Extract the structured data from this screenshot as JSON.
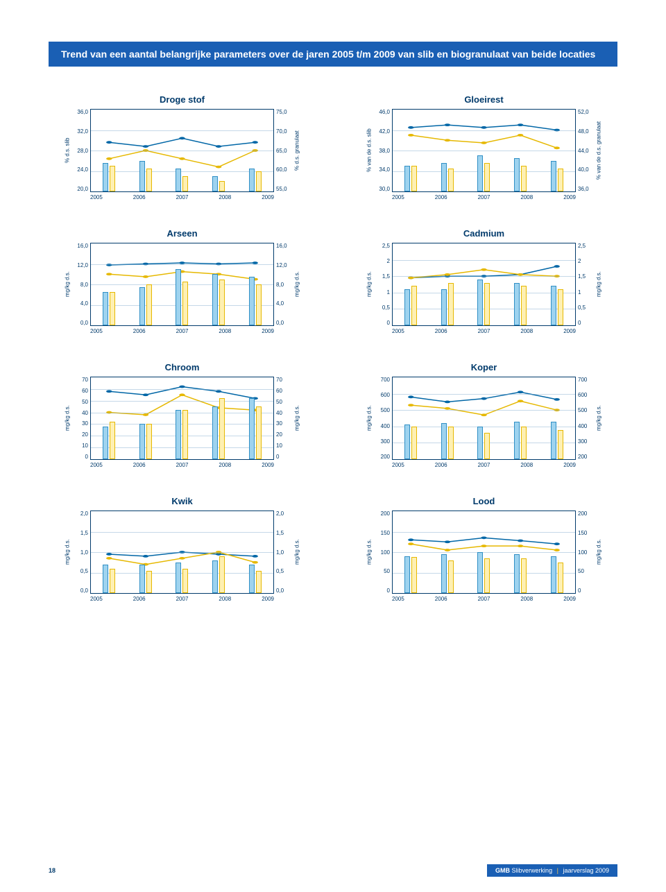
{
  "page_title": "Trend van een aantal belangrijke parameters over de jaren 2005 t/m 2009 van slib en biogranulaat van beide locaties",
  "years": [
    "2005",
    "2006",
    "2007",
    "2008",
    "2009"
  ],
  "page_number": "18",
  "footer_brand": "GMB",
  "footer_text1": "Slibverwerking",
  "footer_text2": "jaarverslag 2009",
  "colors": {
    "bar_blue_fill": "#9ed3ef",
    "bar_blue_stroke": "#2f8fc5",
    "bar_yellow_fill": "#fef0b3",
    "bar_yellow_stroke": "#e6b800",
    "line_blue": "#0066a6",
    "line_yellow": "#e6b800",
    "title_color": "#003a6b",
    "title_bar_bg": "#1a5fb4",
    "grid": "#7fa9cc"
  },
  "charts": [
    {
      "id": "droge-stof",
      "title": "Droge stof",
      "left_label": "% d.s. slib",
      "right_label": "% d.s. granulaat",
      "left_min": 20.0,
      "left_max": 36.0,
      "right_min": 55.0,
      "right_max": 75.0,
      "left_ticks": [
        "36,0",
        "32,0",
        "28,0",
        "24,0",
        "20,0"
      ],
      "right_ticks": [
        "75,0",
        "70,0",
        "65,0",
        "60,0",
        "55,0"
      ],
      "bar_blue": [
        25.5,
        26.0,
        24.5,
        23.0,
        24.5
      ],
      "bar_yellow": [
        25.0,
        24.5,
        23.0,
        22.0,
        24.0
      ],
      "line_blue": [
        67.0,
        66.0,
        68.0,
        66.0,
        67.0
      ],
      "line_yellow": [
        63.0,
        65.0,
        63.0,
        61.0,
        65.0
      ]
    },
    {
      "id": "gloeirest",
      "title": "Gloeirest",
      "left_label": "% van de d.s. slib",
      "right_label": "% van de d.s. granulaat",
      "left_min": 30.0,
      "left_max": 46.0,
      "right_min": 36.0,
      "right_max": 52.0,
      "left_ticks": [
        "46,0",
        "42,0",
        "38,0",
        "34,0",
        "30,0"
      ],
      "right_ticks": [
        "52,0",
        "48,0",
        "44,0",
        "40,0",
        "36,0"
      ],
      "bar_blue": [
        35.0,
        35.5,
        37.0,
        36.5,
        36.0
      ],
      "bar_yellow": [
        35.0,
        34.5,
        35.5,
        35.0,
        34.5
      ],
      "line_blue": [
        48.5,
        49.0,
        48.5,
        49.0,
        48.0
      ],
      "line_yellow": [
        47.0,
        46.0,
        45.5,
        47.0,
        44.5
      ]
    },
    {
      "id": "arseen",
      "title": "Arseen",
      "left_label": "mg/kg d.s.",
      "right_label": "mg/kg d.s.",
      "left_min": 0.0,
      "left_max": 16.0,
      "right_min": 0.0,
      "right_max": 16.0,
      "left_ticks": [
        "16,0",
        "12,0",
        "8,0",
        "4,0",
        "0,0"
      ],
      "right_ticks": [
        "16,0",
        "12,0",
        "8,0",
        "4,0",
        "0,0"
      ],
      "bar_blue": [
        6.5,
        7.5,
        11.0,
        10.0,
        9.5
      ],
      "bar_yellow": [
        6.5,
        8.0,
        8.5,
        9.0,
        8.0
      ],
      "line_blue": [
        11.8,
        12.0,
        12.2,
        12.0,
        12.2
      ],
      "line_yellow": [
        10.0,
        9.5,
        10.5,
        10.0,
        9.0
      ]
    },
    {
      "id": "cadmium",
      "title": "Cadmium",
      "left_label": "mg/kg d.s.",
      "right_label": "mg/kg d.s.",
      "left_min": 0.0,
      "left_max": 2.5,
      "right_min": 0.0,
      "right_max": 2.5,
      "left_ticks": [
        "2,5",
        "2",
        "1,5",
        "1",
        "0,5",
        "0"
      ],
      "right_ticks": [
        "2,5",
        "2",
        "1,5",
        "1",
        "0,5",
        "0"
      ],
      "bar_blue": [
        1.1,
        1.1,
        1.4,
        1.3,
        1.2
      ],
      "bar_yellow": [
        1.2,
        1.3,
        1.3,
        1.2,
        1.1
      ],
      "line_blue": [
        1.45,
        1.5,
        1.5,
        1.55,
        1.8
      ],
      "line_yellow": [
        1.45,
        1.55,
        1.7,
        1.55,
        1.5
      ]
    },
    {
      "id": "chroom",
      "title": "Chroom",
      "left_label": "mg/kg d.s.",
      "right_label": "mg/kg d.s.",
      "left_min": 0,
      "left_max": 70,
      "right_min": 0,
      "right_max": 70,
      "left_ticks": [
        "70",
        "60",
        "50",
        "40",
        "30",
        "20",
        "10",
        "0"
      ],
      "right_ticks": [
        "70",
        "60",
        "50",
        "40",
        "30",
        "20",
        "10",
        "0"
      ],
      "bar_blue": [
        28,
        30,
        42,
        45,
        52
      ],
      "bar_yellow": [
        32,
        30,
        42,
        52,
        45
      ],
      "line_blue": [
        58,
        55,
        62,
        58,
        52
      ],
      "line_yellow": [
        40,
        38,
        55,
        44,
        42
      ]
    },
    {
      "id": "koper",
      "title": "Koper",
      "left_label": "mg/kg d.s.",
      "right_label": "mg/kg d.s.",
      "left_min": 200,
      "left_max": 700,
      "right_min": 200,
      "right_max": 700,
      "left_ticks": [
        "700",
        "600",
        "500",
        "400",
        "300",
        "200"
      ],
      "right_ticks": [
        "700",
        "600",
        "500",
        "400",
        "300",
        "200"
      ],
      "bar_blue": [
        410,
        420,
        400,
        430,
        430
      ],
      "bar_yellow": [
        400,
        400,
        360,
        400,
        380
      ],
      "line_blue": [
        580,
        550,
        570,
        610,
        565
      ],
      "line_yellow": [
        530,
        510,
        470,
        555,
        500
      ]
    },
    {
      "id": "kwik",
      "title": "Kwik",
      "left_label": "mg/kg d.s.",
      "right_label": "mg/kg d.s.",
      "left_min": 0.0,
      "left_max": 2.0,
      "right_min": 0.0,
      "right_max": 2.0,
      "left_ticks": [
        "2,0",
        "1,5",
        "1,0",
        "0,5",
        "0,0"
      ],
      "right_ticks": [
        "2,0",
        "1,5",
        "1,0",
        "0,5",
        "0,0"
      ],
      "bar_blue": [
        0.7,
        0.7,
        0.75,
        0.8,
        0.7
      ],
      "bar_yellow": [
        0.6,
        0.55,
        0.6,
        0.9,
        0.55
      ],
      "line_blue": [
        0.95,
        0.9,
        1.0,
        0.95,
        0.9
      ],
      "line_yellow": [
        0.85,
        0.7,
        0.85,
        1.0,
        0.75
      ]
    },
    {
      "id": "lood",
      "title": "Lood",
      "left_label": "mg/kg d.s.",
      "right_label": "mg/kg d.s.",
      "left_min": 0,
      "left_max": 200,
      "right_min": 0,
      "right_max": 200,
      "left_ticks": [
        "200",
        "150",
        "100",
        "50",
        "0"
      ],
      "right_ticks": [
        "200",
        "150",
        "100",
        "50",
        "0"
      ],
      "bar_blue": [
        90,
        95,
        100,
        95,
        90
      ],
      "bar_yellow": [
        88,
        80,
        85,
        85,
        75
      ],
      "line_blue": [
        130,
        125,
        135,
        128,
        120
      ],
      "line_yellow": [
        120,
        105,
        115,
        115,
        105
      ]
    }
  ]
}
